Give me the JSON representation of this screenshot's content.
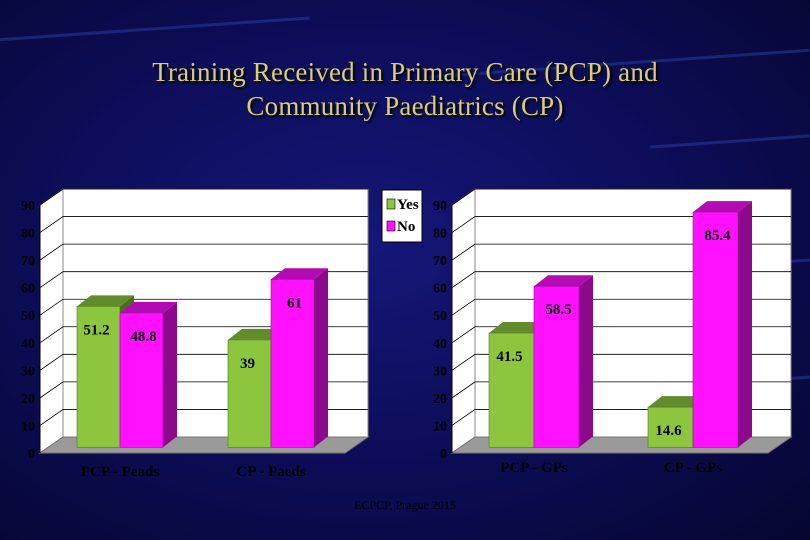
{
  "title_line1": "Training Received in Primary Care (PCP) and",
  "title_line2": "Community Paediatrics (CP)",
  "footer": "ECPCP, Prague 2015",
  "colors": {
    "yes": "#8cc63f",
    "no": "#ff10ff",
    "background": "#0c0c55",
    "title": "#d8d070"
  },
  "chart_data": [
    {
      "type": "bar",
      "categories": [
        "PCP - Peads",
        "CP - Paeds"
      ],
      "series": [
        {
          "name": "Yes",
          "values": [
            51.2,
            39
          ]
        },
        {
          "name": "No",
          "values": [
            48.8,
            61
          ]
        }
      ],
      "data_labels": [
        [
          "51.2",
          "39"
        ],
        [
          "48.8",
          "61"
        ]
      ],
      "ylim": [
        0,
        90
      ],
      "yticks": [
        "0",
        "10",
        "20",
        "30",
        "40",
        "50",
        "60",
        "70",
        "80",
        "90"
      ],
      "grid": true,
      "legend": "top-right"
    },
    {
      "type": "bar",
      "categories": [
        "PCP - GPs",
        "CP - GPs"
      ],
      "series": [
        {
          "name": "Yes",
          "values": [
            41.5,
            14.6
          ]
        },
        {
          "name": "No",
          "values": [
            58.5,
            85.4
          ]
        }
      ],
      "data_labels": [
        [
          "41.5",
          "14.6"
        ],
        [
          "58.5",
          "85.4"
        ]
      ],
      "ylim": [
        0,
        90
      ],
      "yticks": [
        "0",
        "10",
        "20",
        "30",
        "40",
        "50",
        "60",
        "70",
        "80",
        "90"
      ],
      "grid": true,
      "legend": "none"
    }
  ]
}
